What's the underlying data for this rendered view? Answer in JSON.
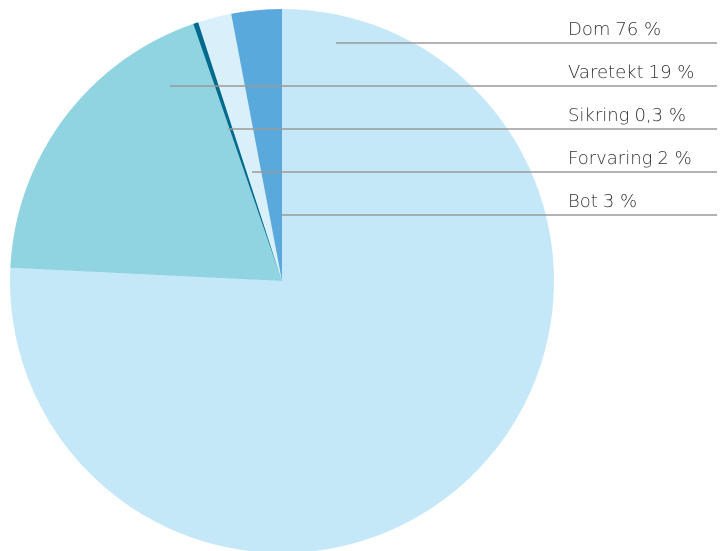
{
  "chart_data": {
    "type": "pie",
    "categories": [
      "Dom",
      "Varetekt",
      "Sikring",
      "Forvaring",
      "Bot"
    ],
    "values": [
      76,
      19,
      0.3,
      2,
      3
    ],
    "value_labels": [
      "76 %",
      "19 %",
      "0,3 %",
      "2 %",
      "3 %"
    ],
    "colors": [
      "#c5e8f8",
      "#8fd4e0",
      "#006a8e",
      "#d9f0fb",
      "#5aa9dc"
    ]
  }
}
